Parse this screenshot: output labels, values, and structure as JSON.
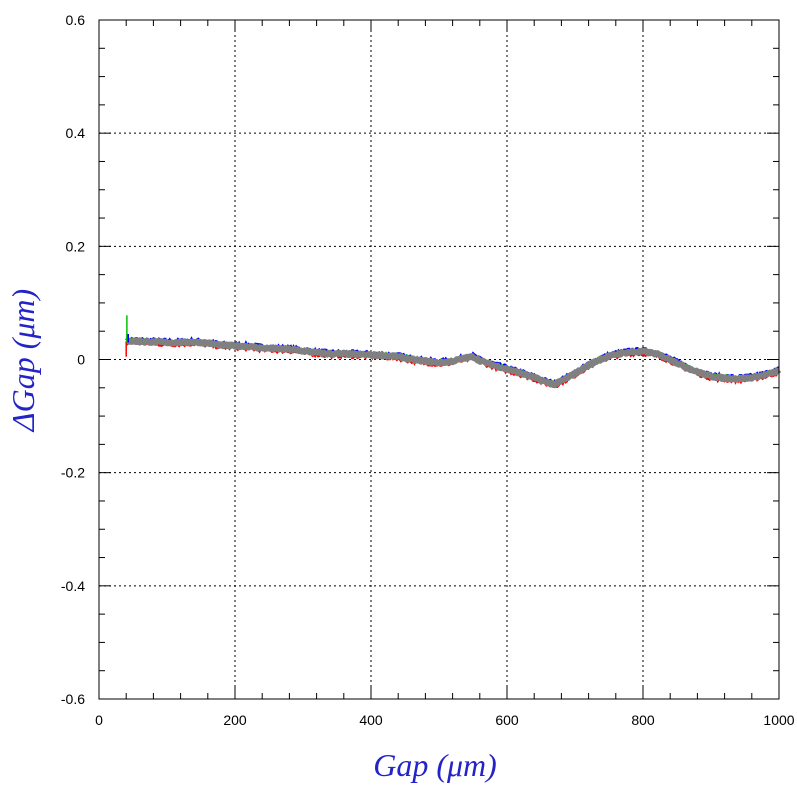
{
  "chart_data": {
    "type": "line",
    "xlabel": "Gap  (μm)",
    "ylabel": "ΔGap  (μm)",
    "xlim": [
      0,
      1000
    ],
    "ylim": [
      -0.6,
      0.6
    ],
    "x_ticks": [
      0,
      200,
      400,
      600,
      800,
      1000
    ],
    "x_tick_labels": [
      "0",
      "200",
      "400",
      "600",
      "800",
      "1000"
    ],
    "y_ticks": [
      -0.6,
      -0.4,
      -0.2,
      0,
      0.2,
      0.4,
      0.6
    ],
    "y_tick_labels": [
      "-0.6",
      "-0.4",
      "-0.2",
      "0",
      "0.2",
      "0.4",
      "0.6"
    ],
    "grid": true,
    "series_colors": [
      "#0000ff",
      "#ff0000",
      "#00c000",
      "#808080"
    ],
    "series": [
      {
        "x": [
          40,
          60,
          80,
          100,
          120,
          140,
          160,
          180,
          200,
          220,
          240,
          260,
          280,
          300,
          320,
          340,
          360,
          380,
          400,
          420,
          440,
          460,
          480,
          500,
          520,
          540,
          550,
          560,
          580,
          600,
          620,
          640,
          660,
          670,
          680,
          700,
          720,
          740,
          760,
          780,
          800,
          820,
          840,
          860,
          880,
          900,
          920,
          940,
          960,
          980,
          1000
        ],
        "y": [
          0.033,
          0.032,
          0.031,
          0.03,
          0.03,
          0.031,
          0.029,
          0.025,
          0.024,
          0.023,
          0.02,
          0.019,
          0.018,
          0.015,
          0.012,
          0.01,
          0.01,
          0.009,
          0.008,
          0.007,
          0.005,
          0.0,
          -0.003,
          -0.006,
          -0.003,
          0.003,
          0.005,
          -0.002,
          -0.01,
          -0.017,
          -0.024,
          -0.032,
          -0.041,
          -0.044,
          -0.038,
          -0.025,
          -0.01,
          0.002,
          0.009,
          0.013,
          0.014,
          0.01,
          0.0,
          -0.012,
          -0.022,
          -0.03,
          -0.033,
          -0.034,
          -0.032,
          -0.027,
          -0.02
        ]
      }
    ]
  }
}
